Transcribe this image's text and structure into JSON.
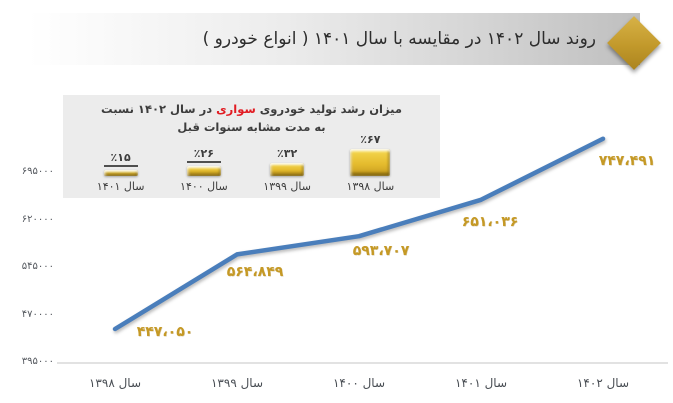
{
  "title": "روند سال ۱۴۰۲ در مقایسه با سال ۱۴۰۱ ( انواع خودرو )",
  "colors": {
    "accent_gold": "#c2992b",
    "line_blue": "#4a7ebb",
    "label_gold": "#c59925",
    "highlight_red": "#e11b22",
    "inset_bg": "#ececec",
    "axis_gray": "#d9d9d9"
  },
  "inset": {
    "title_pre": "میزان رشد تولید خودروی ",
    "title_highlight": "سواری",
    "title_post": " در سال ۱۴۰۲ نسبت",
    "subtitle": "به مدت مشابه سنوات قبل",
    "bars": [
      {
        "percent_label": "٪۶۷",
        "value": 67,
        "year_label": "سال ۱۳۹۸",
        "underlined": false
      },
      {
        "percent_label": "٪۳۲",
        "value": 32,
        "year_label": "سال ۱۳۹۹",
        "underlined": false
      },
      {
        "percent_label": "٪۲۶",
        "value": 26,
        "year_label": "سال ۱۴۰۰",
        "underlined": true
      },
      {
        "percent_label": "٪۱۵",
        "value": 15,
        "year_label": "سال ۱۴۰۱",
        "underlined": true
      }
    ]
  },
  "chart_data": {
    "type": "line",
    "categories": [
      "سال ۱۳۹۸",
      "سال ۱۳۹۹",
      "سال ۱۴۰۰",
      "سال ۱۴۰۱",
      "سال ۱۴۰۲"
    ],
    "values": [
      447050,
      564849,
      593707,
      651036,
      747491
    ],
    "value_labels": [
      "۴۴۷،۰۵۰",
      "۵۶۴،۸۴۹",
      "۵۹۳،۷۰۷",
      "۶۵۱،۰۳۶",
      "۷۴۷،۴۹۱"
    ],
    "y_ticks": [
      {
        "label": "۶۹۵۰۰۰",
        "value": 695000
      },
      {
        "label": "۶۲۰۰۰۰",
        "value": 620000
      },
      {
        "label": "۵۴۵۰۰۰",
        "value": 545000
      },
      {
        "label": "۴۷۰۰۰۰",
        "value": 470000
      },
      {
        "label": "۳۹۵۰۰۰",
        "value": 395000
      }
    ],
    "ylim": [
      395000,
      695000
    ],
    "xlabel": "",
    "ylabel": "",
    "grid": false,
    "legend": false,
    "series_color": "#4a7ebb"
  }
}
